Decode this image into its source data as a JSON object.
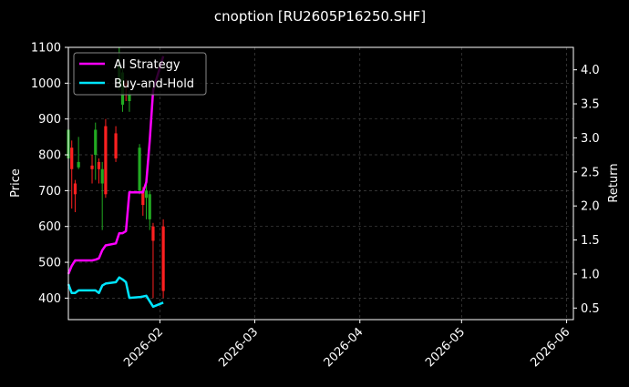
{
  "chart_data": {
    "type": "candlestick+line",
    "title": "cnoption [RU2605P16250.SHF]",
    "ylabel_left": "Price",
    "ylabel_right": "Return",
    "xlabel": "",
    "x_ticks": [
      "2026-02",
      "2026-03",
      "2026-04",
      "2026-05",
      "2026-06"
    ],
    "ylim_left": [
      340,
      1100
    ],
    "yticks_left": [
      400,
      500,
      600,
      700,
      800,
      900,
      1000,
      1100
    ],
    "ylim_right": [
      0.33,
      4.33
    ],
    "yticks_right": [
      0.5,
      1.0,
      1.5,
      2.0,
      2.5,
      3.0,
      3.5,
      4.0
    ],
    "grid": true,
    "legend_position": "top-left",
    "colors": {
      "background": "#000000",
      "ai_strategy": "#ff00ff",
      "buy_and_hold": "#00e5ff",
      "candle_up": "#22aa22",
      "candle_down": "#ff2020",
      "grid": "#444444"
    },
    "candles": [
      {
        "date": "2026-01-05",
        "open": 790,
        "high": 890,
        "low": 760,
        "close": 870
      },
      {
        "date": "2026-01-06",
        "open": 820,
        "high": 840,
        "low": 650,
        "close": 760
      },
      {
        "date": "2026-01-07",
        "open": 720,
        "high": 730,
        "low": 640,
        "close": 690
      },
      {
        "date": "2026-01-08",
        "open": 765,
        "high": 850,
        "low": 760,
        "close": 780
      },
      {
        "date": "2026-01-12",
        "open": 770,
        "high": 800,
        "low": 720,
        "close": 760
      },
      {
        "date": "2026-01-13",
        "open": 800,
        "high": 890,
        "low": 730,
        "close": 870
      },
      {
        "date": "2026-01-14",
        "open": 780,
        "high": 790,
        "low": 720,
        "close": 760
      },
      {
        "date": "2026-01-15",
        "open": 720,
        "high": 780,
        "low": 590,
        "close": 760
      },
      {
        "date": "2026-01-16",
        "open": 880,
        "high": 900,
        "low": 680,
        "close": 690
      },
      {
        "date": "2026-01-19",
        "open": 860,
        "high": 880,
        "low": 780,
        "close": 790
      },
      {
        "date": "2026-01-20",
        "open": 1000,
        "high": 1100,
        "low": 980,
        "close": 1050
      },
      {
        "date": "2026-01-21",
        "open": 940,
        "high": 1040,
        "low": 920,
        "close": 1030
      },
      {
        "date": "2026-01-22",
        "open": 1000,
        "high": 1010,
        "low": 950,
        "close": 990
      },
      {
        "date": "2026-01-23",
        "open": 950,
        "high": 980,
        "low": 920,
        "close": 970
      },
      {
        "date": "2026-01-26",
        "open": 700,
        "high": 830,
        "low": 690,
        "close": 820
      },
      {
        "date": "2026-01-27",
        "open": 700,
        "high": 710,
        "low": 630,
        "close": 660
      },
      {
        "date": "2026-01-28",
        "open": 680,
        "high": 720,
        "low": 620,
        "close": 700
      },
      {
        "date": "2026-01-29",
        "open": 620,
        "high": 700,
        "low": 590,
        "close": 690
      },
      {
        "date": "2026-01-30",
        "open": 600,
        "high": 610,
        "low": 400,
        "close": 560
      },
      {
        "date": "2026-02-02",
        "open": 600,
        "high": 620,
        "low": 400,
        "close": 420
      }
    ],
    "series": [
      {
        "name": "AI Strategy",
        "axis": "right",
        "points": [
          [
            "2026-01-05",
            1.0
          ],
          [
            "2026-01-06",
            1.12
          ],
          [
            "2026-01-07",
            1.2
          ],
          [
            "2026-01-08",
            1.2
          ],
          [
            "2026-01-12",
            1.2
          ],
          [
            "2026-01-13",
            1.21
          ],
          [
            "2026-01-14",
            1.23
          ],
          [
            "2026-01-15",
            1.35
          ],
          [
            "2026-01-16",
            1.42
          ],
          [
            "2026-01-19",
            1.45
          ],
          [
            "2026-01-20",
            1.6
          ],
          [
            "2026-01-21",
            1.6
          ],
          [
            "2026-01-22",
            1.63
          ],
          [
            "2026-01-23",
            2.2
          ],
          [
            "2026-01-26",
            2.2
          ],
          [
            "2026-01-27",
            2.2
          ],
          [
            "2026-01-28",
            2.35
          ],
          [
            "2026-01-29",
            2.95
          ],
          [
            "2026-01-30",
            3.7
          ],
          [
            "2026-02-02",
            4.2
          ]
        ]
      },
      {
        "name": "Buy-and-Hold",
        "axis": "right",
        "points": [
          [
            "2026-01-05",
            0.85
          ],
          [
            "2026-01-06",
            0.72
          ],
          [
            "2026-01-07",
            0.72
          ],
          [
            "2026-01-08",
            0.76
          ],
          [
            "2026-01-12",
            0.76
          ],
          [
            "2026-01-13",
            0.76
          ],
          [
            "2026-01-14",
            0.72
          ],
          [
            "2026-01-15",
            0.83
          ],
          [
            "2026-01-16",
            0.86
          ],
          [
            "2026-01-19",
            0.88
          ],
          [
            "2026-01-20",
            0.95
          ],
          [
            "2026-01-21",
            0.92
          ],
          [
            "2026-01-22",
            0.88
          ],
          [
            "2026-01-23",
            0.65
          ],
          [
            "2026-01-26",
            0.66
          ],
          [
            "2026-01-27",
            0.67
          ],
          [
            "2026-01-28",
            0.68
          ],
          [
            "2026-01-29",
            0.6
          ],
          [
            "2026-01-30",
            0.52
          ],
          [
            "2026-02-02",
            0.58
          ]
        ]
      }
    ]
  }
}
